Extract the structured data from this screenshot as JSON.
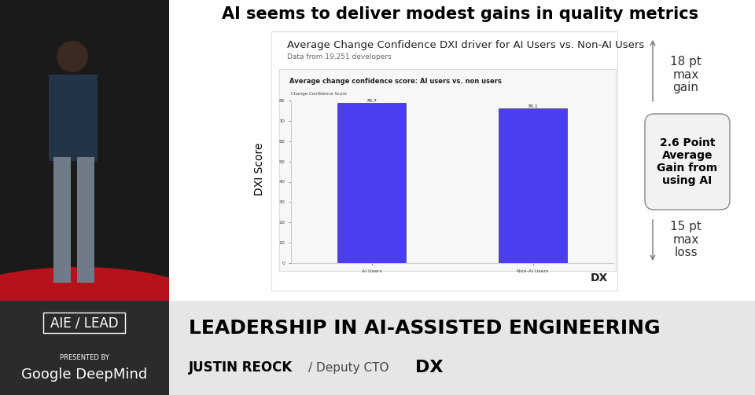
{
  "chart_data": {
    "type": "bar",
    "title": "Average change confidence score: AI users vs. non users",
    "y_label": "Change Confidence Score",
    "categories": [
      "AI Users",
      "Non-AI Users"
    ],
    "values": [
      78.7,
      76.1
    ],
    "color": "#4b3ef0",
    "ylim": [
      0,
      80
    ],
    "yticks": [
      0,
      10,
      20,
      30,
      40,
      50,
      60,
      70,
      80
    ],
    "grid": false,
    "data_labels": true
  },
  "slide": {
    "heading": "AI seems to deliver modest gains in quality metrics",
    "chart_title": "Average Change Confidence DXI driver for AI Users vs. Non-AI Users",
    "chart_subtitle": "Data from 19,251 developers",
    "side_axis_label": "DXI Score",
    "chart_logo": "DX",
    "max_gain": "18 pt\nmax\ngain",
    "average_gain": "2.6 Point\nAverage\nGain from\nusing AI",
    "max_loss": "15 pt\nmax\nloss"
  },
  "banner": {
    "event": "AIE / LEAD",
    "presented_by": "PRESENTED BY",
    "sponsor": "Google DeepMind",
    "talk_title": "LEADERSHIP IN AI-ASSISTED ENGINEERING",
    "speaker": "JUSTIN REOCK",
    "role": "/ Deputy CTO",
    "logo": "DX"
  }
}
